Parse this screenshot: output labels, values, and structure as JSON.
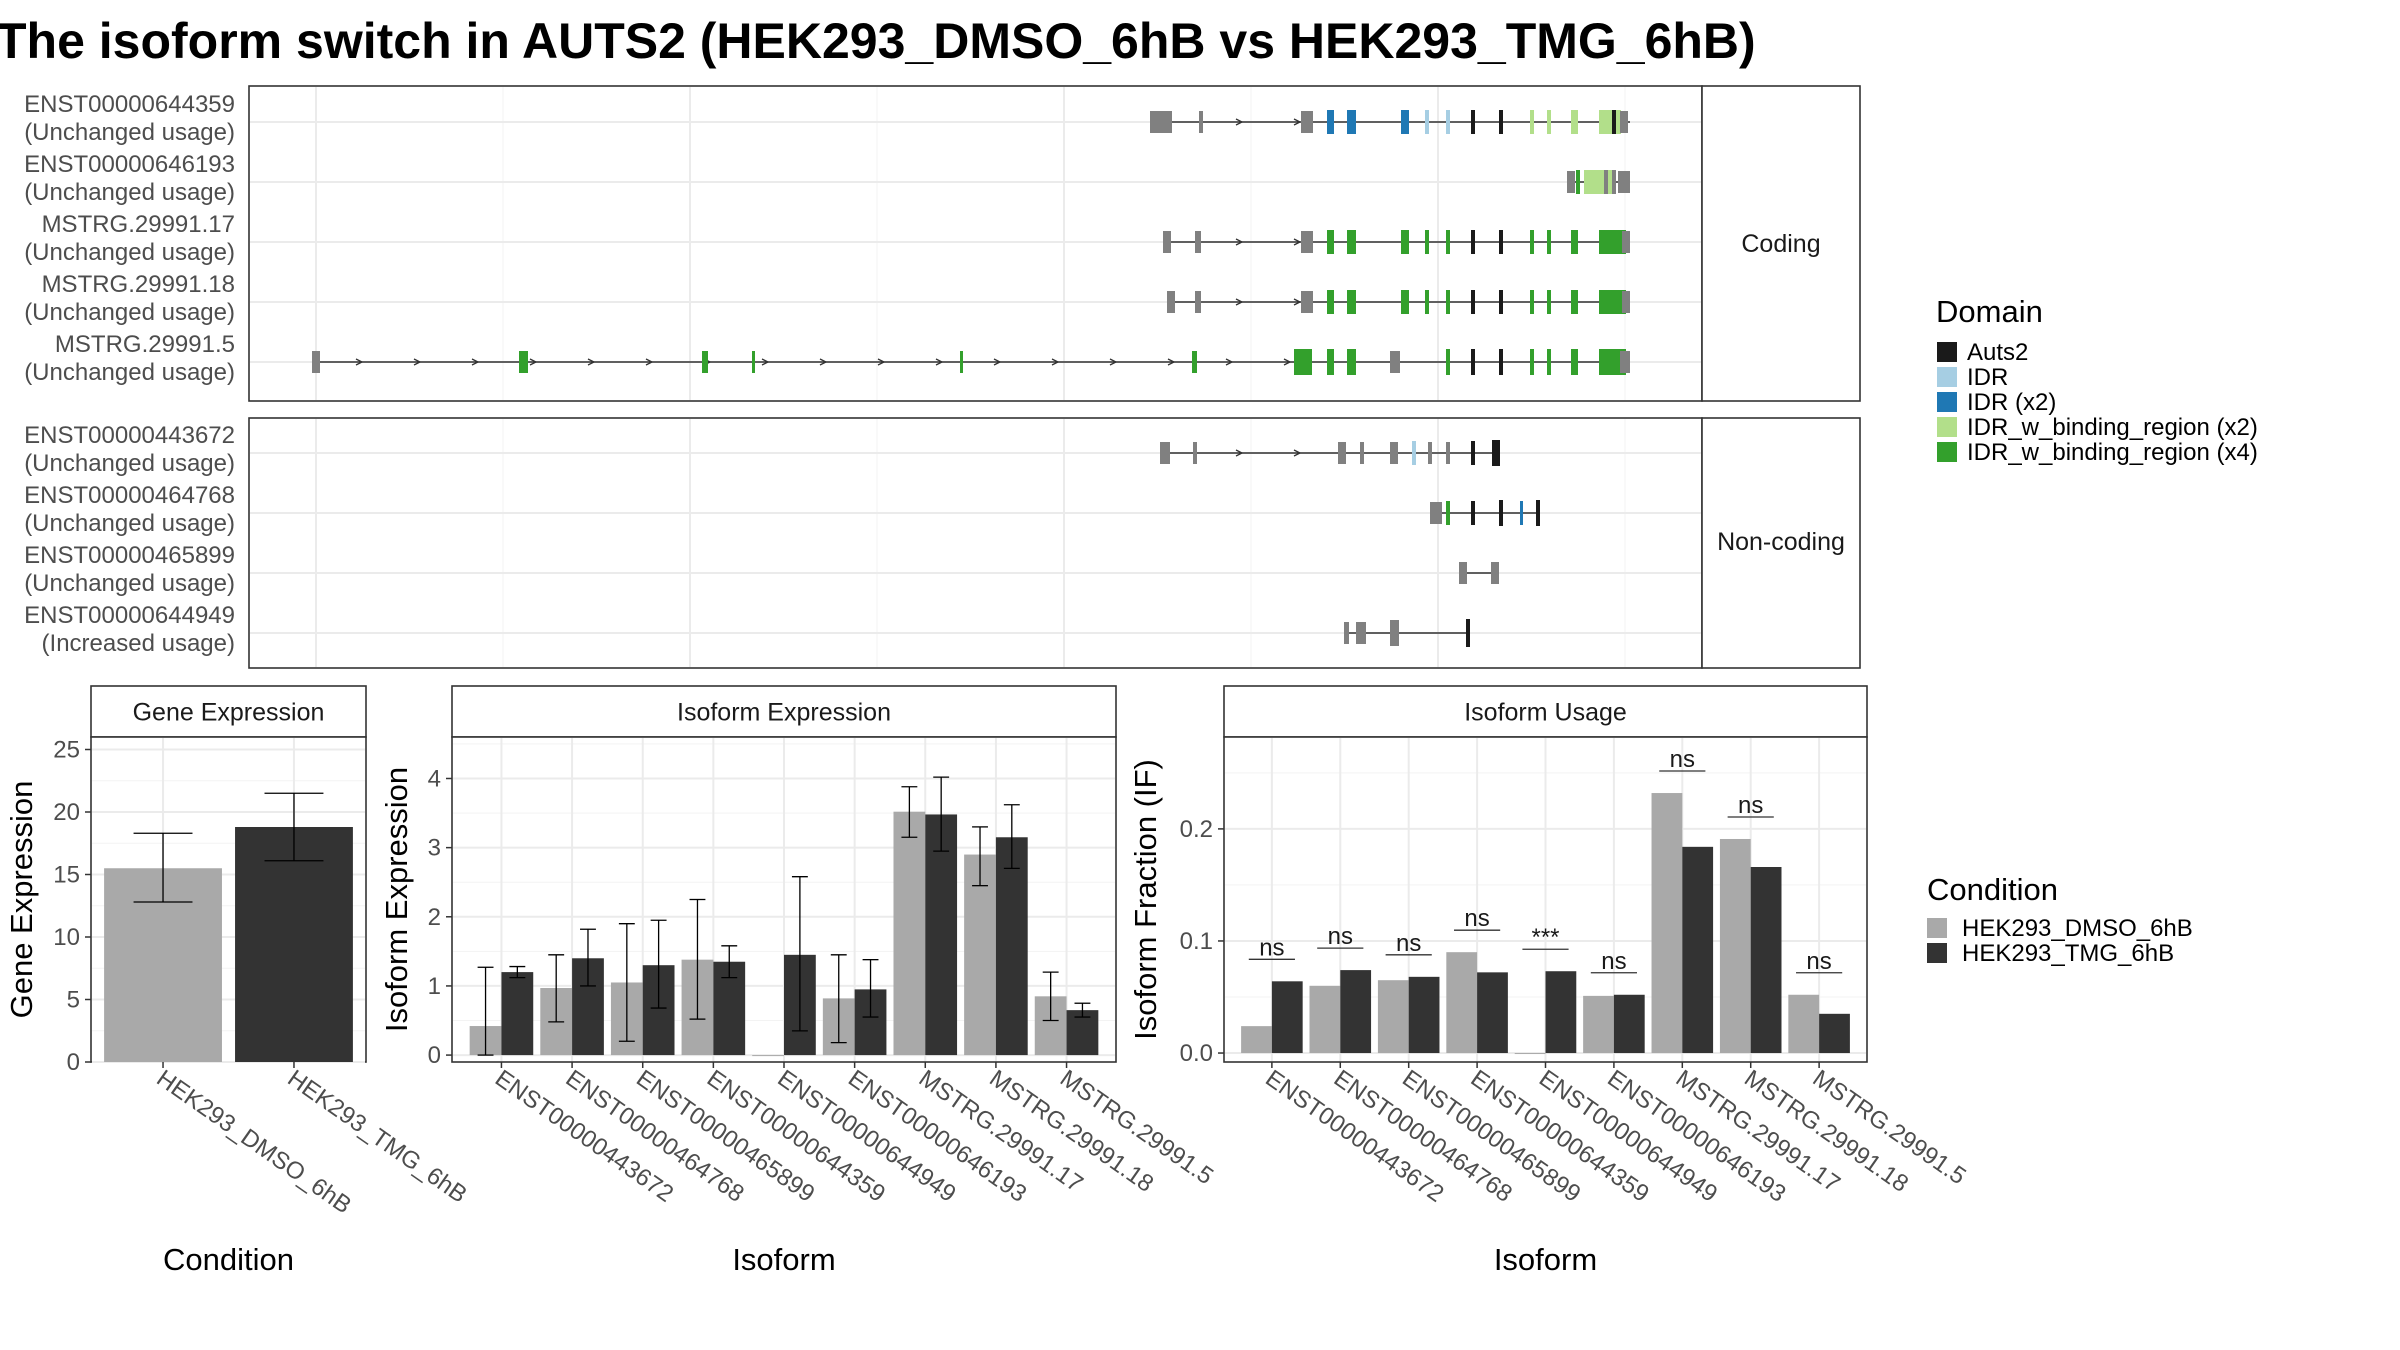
{
  "title": "The isoform switch in AUTS2 (HEK293_DMSO_6hB vs HEK293_TMG_6hB)",
  "colors": {
    "condition_a": "#a9a9a9",
    "condition_b": "#333333",
    "Auts2": "#1a1a1a",
    "IDR": "#a6cee3",
    "IDR (x2)": "#1f78b4",
    "IDR_w_binding_region (x2)": "#b2df8a",
    "IDR_w_binding_region (x4)": "#33a02c",
    "exon_gray": "#808080"
  },
  "domain_legend": {
    "title": "Domain",
    "items": [
      "Auts2",
      "IDR",
      "IDR (x2)",
      "IDR_w_binding_region (x2)",
      "IDR_w_binding_region (x4)"
    ]
  },
  "condition_legend": {
    "title": "Condition",
    "items": [
      "HEK293_DMSO_6hB",
      "HEK293_TMG_6hB"
    ]
  },
  "structure": {
    "coding_label": "Coding",
    "noncoding_label": "Non-coding",
    "coding": [
      {
        "id": "ENST00000644359",
        "usage": "(Unchanged usage)"
      },
      {
        "id": "ENST00000646193",
        "usage": "(Unchanged usage)"
      },
      {
        "id": "MSTRG.29991.17",
        "usage": "(Unchanged usage)"
      },
      {
        "id": "MSTRG.29991.18",
        "usage": "(Unchanged usage)"
      },
      {
        "id": "MSTRG.29991.5",
        "usage": "(Unchanged usage)"
      }
    ],
    "noncoding": [
      {
        "id": "ENST00000443672",
        "usage": "(Unchanged usage)"
      },
      {
        "id": "ENST00000464768",
        "usage": "(Unchanged usage)"
      },
      {
        "id": "ENST00000465899",
        "usage": "(Unchanged usage)"
      },
      {
        "id": "ENST00000644949",
        "usage": "(Increased usage)"
      }
    ]
  },
  "chart_data": [
    {
      "type": "bar",
      "title": "Gene Expression",
      "xlabel": "Condition",
      "ylabel": "Gene Expression",
      "categories": [
        "HEK293_DMSO_6hB",
        "HEK293_TMG_6hB"
      ],
      "values": [
        15.5,
        18.8
      ],
      "error_low": [
        12.8,
        16.1
      ],
      "error_high": [
        18.3,
        21.5
      ],
      "ylim": [
        0,
        26
      ],
      "yticks": [
        0,
        5,
        10,
        15,
        20,
        25
      ]
    },
    {
      "type": "bar",
      "title": "Isoform Expression",
      "xlabel": "Isoform",
      "ylabel": "Isoform Expression",
      "categories": [
        "ENST00000443672",
        "ENST00000464768",
        "ENST00000465899",
        "ENST00000644359",
        "ENST00000644949",
        "ENST00000646193",
        "MSTRG.29991.17",
        "MSTRG.29991.18",
        "MSTRG.29991.5"
      ],
      "series": [
        {
          "name": "HEK293_DMSO_6hB",
          "values": [
            0.42,
            0.97,
            1.05,
            1.38,
            0.0,
            0.82,
            3.52,
            2.9,
            0.85
          ],
          "error_low": [
            0.0,
            0.48,
            0.2,
            0.52,
            0.0,
            0.18,
            3.15,
            2.45,
            0.5
          ],
          "error_high": [
            1.27,
            1.45,
            1.9,
            2.25,
            0.0,
            1.45,
            3.88,
            3.3,
            1.2
          ]
        },
        {
          "name": "HEK293_TMG_6hB",
          "values": [
            1.2,
            1.4,
            1.3,
            1.35,
            1.45,
            0.95,
            3.48,
            3.15,
            0.65
          ],
          "error_low": [
            1.12,
            1.0,
            0.68,
            1.12,
            0.35,
            0.55,
            2.95,
            2.7,
            0.55
          ],
          "error_high": [
            1.28,
            1.82,
            1.95,
            1.58,
            2.58,
            1.38,
            4.02,
            3.62,
            0.75
          ]
        }
      ],
      "ylim": [
        -0.1,
        4.6
      ],
      "yticks": [
        0,
        1,
        2,
        3,
        4
      ]
    },
    {
      "type": "bar",
      "title": "Isoform Usage",
      "xlabel": "Isoform",
      "ylabel": "Isoform Fraction (IF)",
      "categories": [
        "ENST00000443672",
        "ENST00000464768",
        "ENST00000465899",
        "ENST00000644359",
        "ENST00000644949",
        "ENST00000646193",
        "MSTRG.29991.17",
        "MSTRG.29991.18",
        "MSTRG.29991.5"
      ],
      "series": [
        {
          "name": "HEK293_DMSO_6hB",
          "values": [
            0.024,
            0.06,
            0.065,
            0.09,
            0.0,
            0.051,
            0.232,
            0.191,
            0.052
          ]
        },
        {
          "name": "HEK293_TMG_6hB",
          "values": [
            0.064,
            0.074,
            0.068,
            0.072,
            0.073,
            0.052,
            0.184,
            0.166,
            0.035
          ]
        }
      ],
      "significance": [
        "ns",
        "ns",
        "ns",
        "ns",
        "***",
        "ns",
        "ns",
        "ns",
        "ns"
      ],
      "ylim": [
        -0.008,
        0.282
      ],
      "yticks": [
        0.0,
        0.1,
        0.2
      ],
      "ytick_labels": [
        "0.0",
        "0.1",
        "0.2"
      ]
    }
  ]
}
